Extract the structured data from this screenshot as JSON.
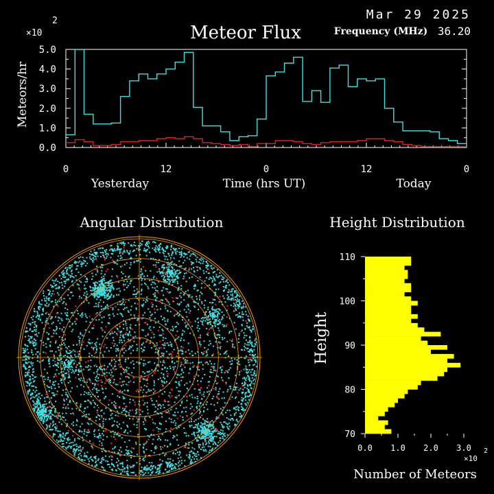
{
  "header": {
    "date": "Mar 29 2025",
    "title": "Meteor Flux",
    "frequency_label": "Frequency (MHz)",
    "frequency_value": "36.20"
  },
  "chart_data": [
    {
      "type": "line",
      "name": "meteor-flux",
      "multiplier": "×10",
      "multiplier_exp": "2",
      "ylabel": "Meteors/hr",
      "xlabel": "Time (hrs UT)",
      "day_labels": [
        "Yesterday",
        "Today"
      ],
      "x_ticks": [
        "0",
        "12",
        "0",
        "12",
        "0"
      ],
      "y_ticks": [
        "0.0",
        "1.0",
        "2.0",
        "3.0",
        "4.0",
        "5.0"
      ],
      "ylim": [
        0,
        5
      ],
      "xlim": [
        0,
        48
      ],
      "colors": {
        "total": "#40e0e0",
        "background": "#e02020",
        "axes": "#ffffff"
      },
      "series": [
        {
          "values": [
            0.65,
            5.0,
            1.7,
            1.2,
            1.2,
            1.25,
            2.6,
            3.4,
            3.75,
            3.5,
            3.75,
            4.0,
            4.35,
            4.85,
            2.05,
            1.1,
            1.1,
            0.8,
            0.35,
            0.55,
            0.6,
            1.45,
            3.65,
            3.85,
            4.3,
            4.6,
            2.35,
            2.9,
            2.3,
            4.05,
            4.2,
            3.1,
            3.5,
            3.4,
            3.5,
            2.0,
            1.3,
            0.85,
            0.85,
            0.85,
            0.8,
            0.45,
            0.35,
            0.2
          ]
        },
        {
          "values": [
            0.25,
            0.4,
            0.3,
            0.1,
            0.1,
            0.15,
            0.3,
            0.3,
            0.35,
            0.35,
            0.45,
            0.5,
            0.45,
            0.55,
            0.45,
            0.25,
            0.2,
            0.15,
            0.1,
            0.15,
            0.05,
            0.2,
            0.2,
            0.35,
            0.35,
            0.3,
            0.2,
            0.15,
            0.25,
            0.3,
            0.3,
            0.3,
            0.35,
            0.45,
            0.45,
            0.35,
            0.3,
            0.15,
            0.1,
            0.05,
            0.05,
            0.05,
            0.05,
            0.05
          ]
        }
      ]
    },
    {
      "type": "scatter",
      "name": "angular-distribution",
      "title": "Angular Distribution",
      "colors": {
        "points": "#40e0e0",
        "background_points": "#ff2020",
        "grid": "#ffa000"
      }
    },
    {
      "type": "bar",
      "name": "height-distribution",
      "title": "Height Distribution",
      "ylabel": "Height",
      "xlabel": "Number of Meteors",
      "multiplier": "×10",
      "multiplier_exp": "2",
      "x_ticks": [
        "0.0",
        "1.0",
        "2.0",
        "3.0"
      ],
      "y_ticks": [
        "70",
        "80",
        "90",
        "100",
        "110"
      ],
      "xlim": [
        0,
        3
      ],
      "ylim": [
        70,
        110
      ],
      "bar_color": "#ffff00",
      "heights": [
        70,
        71,
        72,
        73,
        74,
        75,
        76,
        77,
        78,
        79,
        80,
        81,
        82,
        83,
        84,
        85,
        86,
        87,
        88,
        89,
        90,
        91,
        92,
        93,
        94,
        95,
        96,
        97,
        98,
        99,
        100,
        101,
        102,
        103,
        104,
        105,
        106,
        107,
        108,
        109
      ],
      "values": [
        0.8,
        0.6,
        0.7,
        0.4,
        0.6,
        0.7,
        0.9,
        1.0,
        1.2,
        1.3,
        1.6,
        1.7,
        2.2,
        2.4,
        2.5,
        2.9,
        2.5,
        2.7,
        2.0,
        2.5,
        1.9,
        1.7,
        2.3,
        1.8,
        1.6,
        1.4,
        1.6,
        1.4,
        1.4,
        1.6,
        1.4,
        1.2,
        1.4,
        1.4,
        1.2,
        1.3,
        1.3,
        1.2,
        1.4,
        1.4
      ]
    }
  ]
}
